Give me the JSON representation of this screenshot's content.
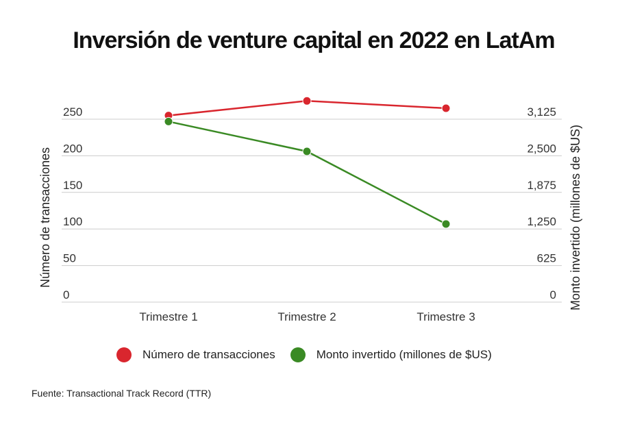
{
  "title": "Inversión de venture capital en 2022 en LatAm",
  "source": "Fuente: Transactional Track Record (TTR)",
  "colors": {
    "transacciones": "#d9262e",
    "monto": "#3a8a24",
    "grid": "#cccccc"
  },
  "chart_data": {
    "type": "line",
    "title": "Inversión de venture capital en 2022 en LatAm",
    "categories": [
      "Trimestre 1",
      "Trimestre 2",
      "Trimestre 3"
    ],
    "left_axis": {
      "label": "Número de transacciones",
      "ticks": [
        "0",
        "50",
        "100",
        "150",
        "200",
        "250"
      ],
      "ylim": [
        0,
        250
      ]
    },
    "right_axis": {
      "label": "Monto invertido (millones de $US)",
      "ticks": [
        "0",
        "625",
        "1,250",
        "1,875",
        "2,500",
        "3,125"
      ],
      "ylim": [
        0,
        3125
      ]
    },
    "series": [
      {
        "name": "Número de transacciones",
        "axis": "left",
        "color": "#d9262e",
        "values": [
          255,
          275,
          265
        ]
      },
      {
        "name": "Monto invertido (millones de $US)",
        "axis": "right",
        "color": "#3a8a24",
        "values": [
          3085,
          2575,
          1335
        ]
      }
    ],
    "legend": {
      "position": "bottom",
      "items": [
        "Número de transacciones",
        "Monto invertido (millones de $US)"
      ]
    },
    "grid": true
  }
}
